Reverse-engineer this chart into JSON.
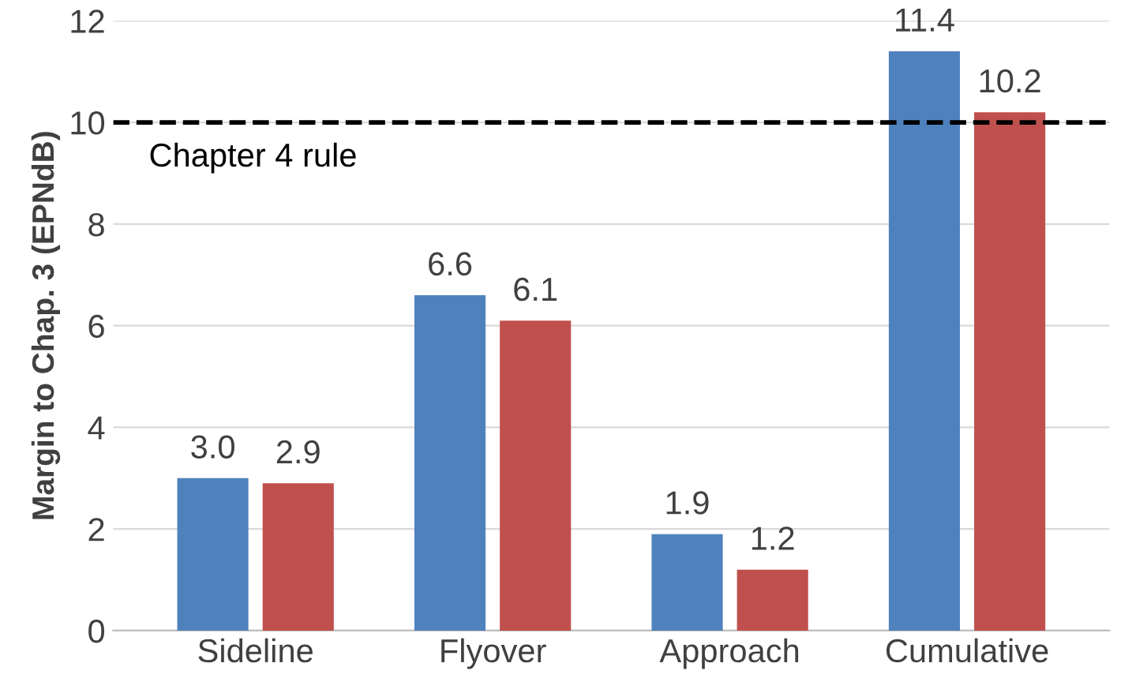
{
  "chart_data": {
    "type": "bar",
    "ylabel": "Margin to Chap. 3 (EPNdB)",
    "categories": [
      "Sideline",
      "Flyover",
      "Approach",
      "Cumulative"
    ],
    "series": [
      {
        "color": "#4f81bd",
        "values": [
          3.0,
          6.6,
          1.9,
          11.4
        ],
        "value_labels": [
          "3.0",
          "6.6",
          "1.9",
          "11.4"
        ]
      },
      {
        "color": "#c0504d",
        "values": [
          2.9,
          6.1,
          1.2,
          10.2
        ],
        "value_labels": [
          "2.9",
          "6.1",
          "1.2",
          "10.2"
        ]
      }
    ],
    "ylim": [
      0,
      12
    ],
    "yticks": [
      0,
      2,
      4,
      6,
      8,
      10,
      12
    ],
    "grid": "y",
    "ref_lines": [
      {
        "axis": "y",
        "value": 10,
        "label": "Chapter 4 rule",
        "color": "#000000",
        "line_style": "dashed"
      }
    ]
  }
}
